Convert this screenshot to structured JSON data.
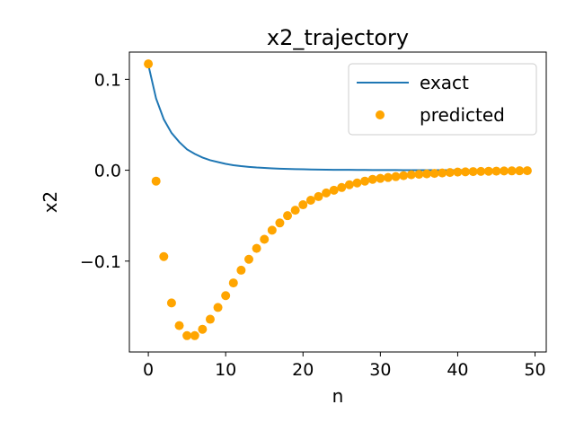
{
  "chart_data": {
    "type": "line",
    "title": "x2_trajectory",
    "xlabel": "n",
    "ylabel": "x2",
    "xlim": [
      -2.45,
      51.45
    ],
    "ylim": [
      -0.2,
      0.13
    ],
    "xticks": [
      {
        "value": 0,
        "label": "0"
      },
      {
        "value": 10,
        "label": "10"
      },
      {
        "value": 20,
        "label": "20"
      },
      {
        "value": 30,
        "label": "30"
      },
      {
        "value": 40,
        "label": "40"
      },
      {
        "value": 50,
        "label": "50"
      }
    ],
    "yticks": [
      {
        "value": 0.1,
        "label": "0.1"
      },
      {
        "value": 0.0,
        "label": "0.0"
      },
      {
        "value": -0.1,
        "label": "−0.1"
      }
    ],
    "grid": false,
    "legend_position": "top-right",
    "series": [
      {
        "name": "exact",
        "type": "line",
        "color": "#1f77b4",
        "x": [
          0,
          1,
          2,
          3,
          4,
          5,
          6,
          7,
          8,
          9,
          10,
          11,
          12,
          13,
          14,
          15,
          16,
          17,
          18,
          19,
          20,
          21,
          22,
          23,
          24,
          25,
          26,
          27,
          28,
          29,
          30,
          31,
          32,
          33,
          34,
          35,
          36,
          37,
          38,
          39,
          40,
          41,
          42,
          43,
          44,
          45,
          46,
          47,
          48,
          49
        ],
        "y": [
          0.116,
          0.079,
          0.056,
          0.041,
          0.031,
          0.023,
          0.018,
          0.014,
          0.011,
          0.009,
          0.007,
          0.0055,
          0.0045,
          0.0037,
          0.003,
          0.0025,
          0.002,
          0.0017,
          0.0014,
          0.0012,
          0.001,
          0.0008,
          0.0007,
          0.0006,
          0.0005,
          0.0004,
          0.0004,
          0.0003,
          0.0003,
          0.0002,
          0.0002,
          0.0002,
          0.0002,
          0.0001,
          0.0001,
          0.0001,
          0.0001,
          0.0001,
          0.0001,
          0.0001,
          0.0001,
          0.0001,
          0,
          0,
          0,
          0,
          0,
          0,
          0,
          0
        ]
      },
      {
        "name": "predicted",
        "type": "scatter",
        "color": "#ffa500",
        "x": [
          0,
          1,
          2,
          3,
          4,
          5,
          6,
          7,
          8,
          9,
          10,
          11,
          12,
          13,
          14,
          15,
          16,
          17,
          18,
          19,
          20,
          21,
          22,
          23,
          24,
          25,
          26,
          27,
          28,
          29,
          30,
          31,
          32,
          33,
          34,
          35,
          36,
          37,
          38,
          39,
          40,
          41,
          42,
          43,
          44,
          45,
          46,
          47,
          48,
          49
        ],
        "y": [
          0.117,
          -0.012,
          -0.095,
          -0.146,
          -0.171,
          -0.182,
          -0.182,
          -0.175,
          -0.164,
          -0.151,
          -0.138,
          -0.124,
          -0.11,
          -0.098,
          -0.086,
          -0.076,
          -0.066,
          -0.058,
          -0.05,
          -0.044,
          -0.038,
          -0.033,
          -0.029,
          -0.025,
          -0.022,
          -0.019,
          -0.016,
          -0.014,
          -0.012,
          -0.01,
          -0.009,
          -0.008,
          -0.007,
          -0.006,
          -0.005,
          -0.0045,
          -0.004,
          -0.0035,
          -0.003,
          -0.0025,
          -0.002,
          -0.0018,
          -0.0015,
          -0.0013,
          -0.0011,
          -0.001,
          -0.0008,
          -0.0007,
          -0.0006,
          -0.0005
        ]
      }
    ]
  }
}
